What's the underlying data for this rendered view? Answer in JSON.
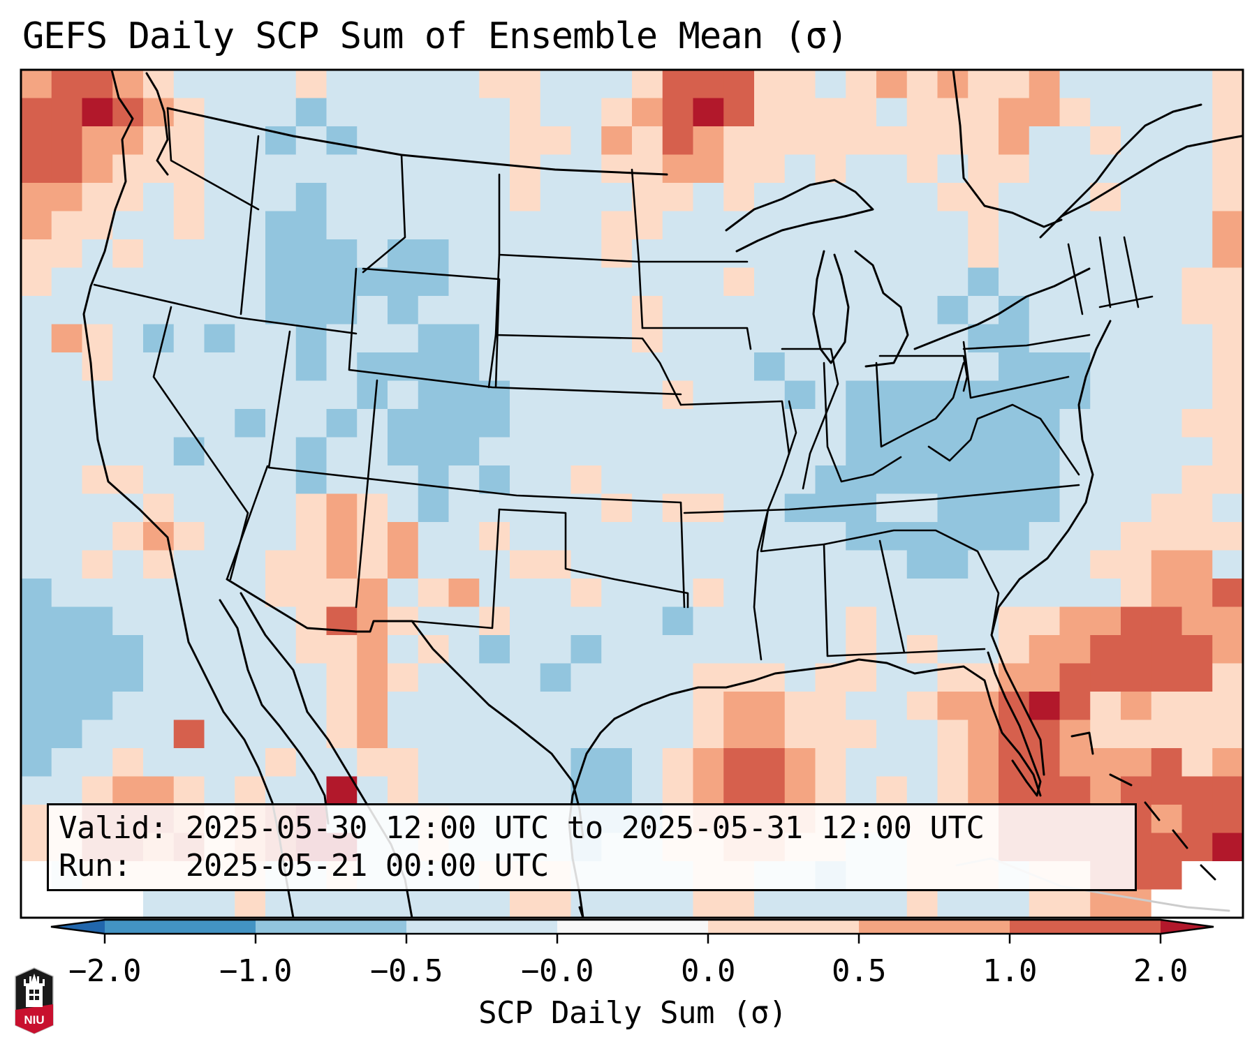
{
  "figure": {
    "title": "GEFS Daily SCP Sum of Ensemble Mean (σ)",
    "annotation": {
      "valid_line": "Valid: 2025-05-30 12:00 UTC to 2025-05-31 12:00 UTC",
      "run_line": "Run:   2025-05-21 00:00 UTC"
    },
    "logo": {
      "text": "NIU",
      "name": "Northern Illinois University logo"
    }
  },
  "chart_data": {
    "type": "heatmap",
    "title": "GEFS Daily SCP Sum of Ensemble Mean (σ)",
    "variable": "SCP Daily Sum",
    "units": "σ",
    "valid_start": "2025-05-30 12:00 UTC",
    "valid_end": "2025-05-31 12:00 UTC",
    "run": "2025-05-21 00:00 UTC",
    "domain": "Contiguous United States, northern Mexico, western Atlantic",
    "colorbar": {
      "label": "SCP Daily Sum (σ)",
      "orientation": "horizontal",
      "extend": "both",
      "boundaries": [
        -2.0,
        -1.0,
        -0.5,
        -0.0,
        0.0,
        0.5,
        1.0,
        2.0
      ],
      "tick_labels": [
        "−2.0",
        "−1.0",
        "−0.5",
        "−0.0",
        "0.0",
        "0.5",
        "1.0",
        "2.0"
      ],
      "colors": {
        "under": "#2166ac",
        "bins": [
          "#4393c3",
          "#92c5de",
          "#d1e5f0",
          "#f7f7f7",
          "#fddbc7",
          "#f4a582",
          "#d6604d"
        ],
        "over": "#b2182b"
      }
    },
    "grid_legend": {
      "B": "#4393c3",
      "b": "#92c5de",
      ".": "#d1e5f0",
      "p": "#fddbc7",
      "s": "#f4a582",
      "r": "#d6604d",
      "d": "#b2182b",
      "w": "#ffffff"
    },
    "grid_value_ranges": {
      "B": "-2.0 to -1.0",
      "b": "-1.0 to -0.5",
      ".": "-0.5 to 0.0",
      "p": "0.0 to 0.5",
      "s": "0.5 to 1.0",
      "r": "1.0 to 2.0",
      "d": "> 2.0"
    },
    "grid_rows": [
      "srrsp....p.....pp...prrrpp.pspspps.....p",
      "rrdrsp...b......p..psrdrpppp.pppssp....p",
      "rrsspp..b.b.....pp.sprsppppppppps..p...p",
      "rrsppp..........p..ppsspp.p..p.pp......p",
      "sspp.p...b......p...pp.p......pp...p...p",
      "spp..p..bb.........pp..........p.......s",
      "pp.p....bbb.bb.....p...........p.......s",
      "p.......bbbbbb.........p.......b......pp",
      "........bbb.b.......p.........b.b.....pp",
      ".sp.b.b..b...bb.....p..........bb......p",
      "..p......b.bbbb.........b.......bbb....p",
      "...........b.bbb.....p...b.bbbbbbbb....p",
      ".......b..b.bbbb...........bbbbbbb....pp",
      ".....b...b..bbb............bbbbbbb.....p",
      "..pp.....b...b.b..p.......bbbbbbbb....pp",
      "....p....psp.b.....p.pp..bbb..bbbb...pp.",
      "...psp...psps..p...........bbbbbb...pppp",
      "..p.p...ppsps...pp...........bb....ppss.",
      "b.......ppps.ps...p...p.............pssr",
      "bbb......prsp..p.....b.....p....ppssrrss",
      "bbbb.....pps.p.b..b........p.p..pssrrrrs",
      "bbbb......psp....b....ppp.pp..ppssrrrrrp",
      "bbb.......ps..........psspp..pssrdrpsppp",
      "bb...r....ps..........pssppp..psrrsppppp",
      "b..p....p..pp.....bb.psrrsp...psrrsssrps",
      "..pssp.p..d.p.....bb.psrrsp.p.psrrrsrrrr",
      "pprrrspsrd...p....bbbpsssspppppprrrrrsrr",
      "pprrsrpsrdd..p....b..ppsspp..ppprrrrrrrd",
      "w.pppppp..p....ppp....pp..b..ppp.pprrrww",
      "wwww...p........pp....pp.....p...ppsswww"
    ]
  }
}
